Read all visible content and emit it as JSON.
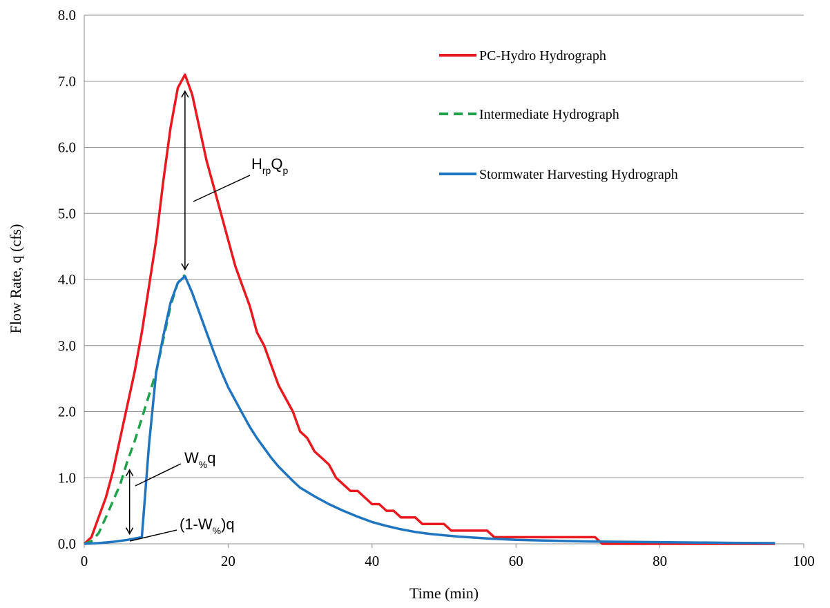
{
  "chart_data": {
    "type": "line",
    "title": "",
    "xlabel": "Time (min)",
    "ylabel": "Flow Rate, q (cfs)",
    "xlim": [
      0,
      100
    ],
    "ylim": [
      0,
      8
    ],
    "x_ticks": [
      "0",
      "20",
      "40",
      "60",
      "80",
      "100"
    ],
    "y_ticks": [
      "0.0",
      "1.0",
      "2.0",
      "3.0",
      "4.0",
      "5.0",
      "6.0",
      "7.0",
      "8.0"
    ],
    "grid": "horizontal",
    "legend_position": "top-right",
    "series": [
      {
        "name": "PC-Hydro Hydrograph",
        "color": "#e8191f",
        "style": "solid",
        "x": [
          0,
          1,
          2,
          3,
          4,
          5,
          6,
          7,
          8,
          9,
          10,
          11,
          12,
          13,
          14,
          15,
          16,
          17,
          18,
          19,
          20,
          21,
          22,
          23,
          24,
          25,
          26,
          27,
          28,
          29,
          30,
          31,
          32,
          33,
          34,
          35,
          36,
          37,
          38,
          39,
          40,
          41,
          42,
          43,
          44,
          45,
          46,
          47,
          48,
          49,
          50,
          51,
          52,
          53,
          54,
          55,
          56,
          57,
          58,
          59,
          60,
          61,
          62,
          63,
          64,
          65,
          66,
          67,
          68,
          69,
          70,
          71,
          72,
          80,
          90,
          96
        ],
        "y": [
          0,
          0.1,
          0.4,
          0.7,
          1.1,
          1.6,
          2.1,
          2.6,
          3.2,
          3.9,
          4.6,
          5.5,
          6.3,
          6.9,
          7.1,
          6.8,
          6.3,
          5.8,
          5.4,
          5.0,
          4.6,
          4.2,
          3.9,
          3.6,
          3.2,
          3.0,
          2.7,
          2.4,
          2.2,
          2.0,
          1.7,
          1.6,
          1.4,
          1.3,
          1.2,
          1.0,
          0.9,
          0.8,
          0.8,
          0.7,
          0.6,
          0.6,
          0.5,
          0.5,
          0.4,
          0.4,
          0.4,
          0.3,
          0.3,
          0.3,
          0.3,
          0.2,
          0.2,
          0.2,
          0.2,
          0.2,
          0.2,
          0.1,
          0.1,
          0.1,
          0.1,
          0.1,
          0.1,
          0.1,
          0.1,
          0.1,
          0.1,
          0.1,
          0.1,
          0.1,
          0.1,
          0.1,
          0,
          0,
          0,
          0
        ]
      },
      {
        "name": "Intermediate Hydrograph",
        "color": "#1fa24a",
        "style": "dashed",
        "x": [
          0,
          1,
          2,
          3,
          4,
          5,
          6,
          7,
          8,
          9,
          10,
          11,
          12,
          13,
          14
        ],
        "y": [
          0,
          0.04,
          0.16,
          0.4,
          0.65,
          0.9,
          1.25,
          1.55,
          1.9,
          2.25,
          2.6,
          3.1,
          3.6,
          3.95,
          4.07
        ]
      },
      {
        "name": "Stormwater Harvesting Hydrograph",
        "color": "#1f75c0",
        "style": "solid",
        "x": [
          0,
          2,
          4,
          6,
          8,
          9,
          10,
          11,
          12,
          13,
          14,
          15,
          16,
          17,
          18,
          19,
          20,
          21,
          22,
          23,
          24,
          25,
          26,
          27,
          28,
          29,
          30,
          32,
          34,
          36,
          38,
          40,
          42,
          44,
          46,
          48,
          50,
          52,
          56,
          60,
          64,
          70,
          80,
          90,
          96
        ],
        "y": [
          0,
          0.01,
          0.03,
          0.06,
          0.1,
          1.5,
          2.6,
          3.15,
          3.65,
          3.95,
          4.05,
          3.8,
          3.5,
          3.2,
          2.9,
          2.62,
          2.37,
          2.17,
          1.97,
          1.77,
          1.6,
          1.45,
          1.3,
          1.17,
          1.06,
          0.95,
          0.85,
          0.72,
          0.6,
          0.5,
          0.41,
          0.33,
          0.27,
          0.22,
          0.18,
          0.15,
          0.13,
          0.11,
          0.08,
          0.06,
          0.05,
          0.035,
          0.025,
          0.015,
          0.01
        ]
      }
    ],
    "annotations": [
      {
        "main": "H",
        "sub": "rp",
        "main2": "Q",
        "sub2": "p"
      },
      {
        "main": "W",
        "sub": "%",
        "tail": "q"
      },
      {
        "pre": "(1-W",
        "sub": "%",
        "tail": ")q"
      }
    ]
  }
}
